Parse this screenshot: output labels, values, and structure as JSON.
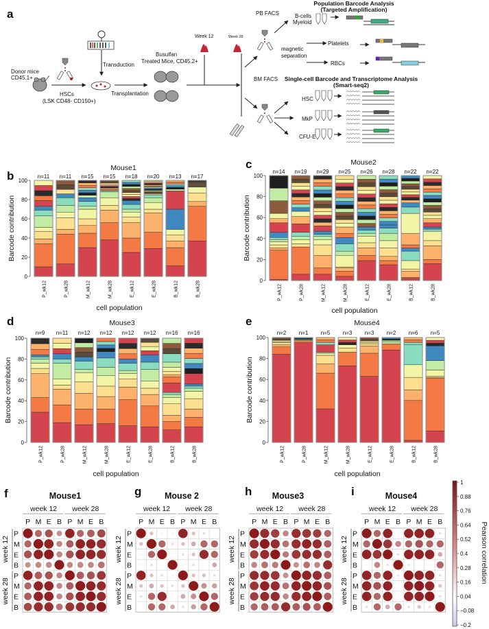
{
  "panel_labels": [
    "a",
    "b",
    "c",
    "d",
    "e",
    "f",
    "g",
    "h",
    "i"
  ],
  "schematic": {
    "donor_line1": "Donor mice",
    "donor_line2": "CD45.1+",
    "hsc_line1": "HSCs",
    "hsc_line2": "(LSK CD48- CD150+)",
    "transduction": "Transduction",
    "transplantation": "Transplantation",
    "recipient_line1": "Busulfan",
    "recipient_line2": "Treated Mice, CD45.2+",
    "week12": "Week 12",
    "week28": "Week 28",
    "pb_facs": "PB FACS",
    "pop_title1": "Population Barcode Analysis",
    "pop_title2": "(Targeted Amplification)",
    "bcells": "B-cells",
    "myeloid": "Myeloid",
    "magnetic1": "magnetic",
    "magnetic2": "separation",
    "platelets": "Platelets",
    "rbcs": "RBCs",
    "bm_facs": "BM FACS",
    "sc_title1": "Single-cell Barcode and Transcriptome Analysis",
    "sc_title2": "(Smart-seq2)",
    "hsc": "HSC",
    "mkp": "MkP",
    "cfue": "CFU-E"
  },
  "palette": [
    "#d5434f",
    "#f47a45",
    "#fdb26b",
    "#fde08f",
    "#f2f5a6",
    "#c2eca3",
    "#8adcc0",
    "#3f88c0"
  ],
  "top_palette": [
    "#2b2b2b",
    "#8c5a3c",
    "#f47a45",
    "#fde08f",
    "#3f88c0",
    "#d5434f",
    "#c2eca3",
    "#fdb26b",
    "#5a4a3a",
    "#8adcc0",
    "#f2f5a6",
    "#1e1e1e"
  ],
  "chart_data": [
    {
      "type": "bar",
      "stacked": true,
      "title": "Mouse1",
      "xlabel": "cell population",
      "ylabel": "Barcode contribution",
      "ylim": [
        0,
        100
      ],
      "yticks": [
        "0",
        "20",
        "40",
        "60",
        "80",
        "100"
      ],
      "categories": [
        "P_wk12",
        "P_wk28",
        "M_wk12",
        "M_wk28",
        "E_wk12",
        "E_wk28",
        "B_wk12",
        "B_wk28"
      ],
      "n_labels": [
        "n=11",
        "n=11",
        "n=15",
        "n=15",
        "n=18",
        "n=20",
        "n=13",
        "n=17"
      ],
      "n": [
        11,
        11,
        15,
        15,
        18,
        20,
        13,
        17
      ],
      "segments": [
        [
          10,
          24,
          5,
          8,
          4,
          12,
          6,
          4,
          6,
          5
        ],
        [
          13,
          31,
          5,
          12,
          6,
          7,
          8,
          4
        ],
        [
          30,
          15,
          8,
          7,
          10,
          3,
          5,
          4
        ],
        [
          38,
          18,
          13,
          5,
          8,
          6
        ],
        [
          25,
          15,
          16,
          6,
          5,
          3,
          5,
          4
        ],
        [
          29,
          17,
          20,
          4,
          7,
          5,
          3
        ],
        [
          11,
          19,
          7,
          6,
          6,
          0,
          0,
          21,
          19
        ],
        [
          37,
          36,
          5,
          9,
          6
        ]
      ]
    },
    {
      "type": "bar",
      "stacked": true,
      "title": "Mouse2",
      "xlabel": "cell population",
      "ylabel": "Barcode contribution",
      "ylim": [
        0,
        100
      ],
      "yticks": [
        "0",
        "20",
        "40",
        "60",
        "80",
        "100"
      ],
      "categories": [
        "P_wk12",
        "P_wk28",
        "M_wk12",
        "M_wk28",
        "E_wk12",
        "E_wk28",
        "B_wk12",
        "B_wk28"
      ],
      "n_labels": [
        "n=14",
        "n=19",
        "n=29",
        "n=25",
        "n=26",
        "n=28",
        "n=22",
        "n=22"
      ],
      "n": [
        14,
        19,
        29,
        25,
        26,
        28,
        22,
        22
      ],
      "segments": [
        [
          1,
          28,
          2,
          3,
          3,
          2,
          2,
          5,
          9,
          0,
          4,
          0,
          5
        ],
        [
          6,
          26,
          0,
          3,
          4,
          3,
          4,
          0,
          8,
          0,
          7,
          0,
          5
        ],
        [
          6,
          6,
          12,
          10,
          5,
          3,
          2,
          3,
          5
        ],
        [
          4,
          5,
          3,
          1,
          11,
          4,
          7,
          6,
          0,
          4,
          6
        ],
        [
          19,
          5,
          7,
          5,
          6,
          3,
          3,
          3
        ],
        [
          15,
          4,
          4,
          8,
          7,
          7,
          5,
          3
        ],
        [
          2,
          1,
          6,
          2,
          8,
          0,
          9,
          3,
          0,
          3,
          11,
          0,
          19,
          0,
          6,
          4
        ],
        [
          16,
          4,
          13,
          5,
          9,
          0,
          2,
          2,
          4,
          0,
          4
        ]
      ]
    },
    {
      "type": "bar",
      "stacked": true,
      "title": "Mouse3",
      "xlabel": "cell population",
      "ylabel": "Barcode contribution",
      "ylim": [
        0,
        100
      ],
      "yticks": [
        "0",
        "20",
        "40",
        "60",
        "80",
        "100"
      ],
      "categories": [
        "P_wk12",
        "P_wk28",
        "M_wk12",
        "M_wk28",
        "E_wk12",
        "E_wk28",
        "B_wk12",
        "B_wk28"
      ],
      "n_labels": [
        "n=9",
        "n=11",
        "n=12",
        "n=12",
        "n=12",
        "n=12",
        "n=16",
        "n=16"
      ],
      "n": [
        9,
        11,
        12,
        12,
        12,
        12,
        16,
        16
      ],
      "segments": [
        [
          29,
          14,
          23,
          5,
          5,
          4,
          2,
          2
        ],
        [
          19,
          17,
          15,
          4,
          6,
          15,
          4,
          5
        ],
        [
          17,
          15,
          15,
          11,
          9,
          3,
          8,
          4
        ],
        [
          18,
          14,
          12,
          10,
          10,
          8,
          9,
          6
        ],
        [
          16,
          25,
          12,
          8,
          5,
          3,
          7,
          4
        ],
        [
          15,
          20,
          11,
          6,
          7,
          11,
          7,
          7
        ],
        [
          12,
          8,
          6,
          11,
          6,
          3,
          2,
          0,
          9,
          6,
          2,
          3,
          4,
          5,
          8
        ],
        [
          15,
          9,
          8,
          10,
          7,
          3,
          2,
          2,
          10
        ]
      ]
    },
    {
      "type": "bar",
      "stacked": true,
      "title": "Mouse4",
      "xlabel": "cell population",
      "ylabel": "Barcode contribution",
      "ylim": [
        0,
        100
      ],
      "yticks": [
        "0",
        "20",
        "40",
        "60",
        "80",
        "100"
      ],
      "categories": [
        "P_wk12",
        "P_wk28",
        "M_wk12",
        "M_wk28",
        "E_wk12",
        "E_wk28",
        "B_wk12",
        "B_wk28"
      ],
      "n_labels": [
        "n=2",
        "n=1",
        "n=5",
        "n=3",
        "n=3",
        "n=2",
        "n=6",
        "n=5"
      ],
      "n": [
        2,
        1,
        5,
        3,
        3,
        2,
        6,
        5
      ],
      "segments": [
        [
          84,
          7,
          2,
          2,
          1
        ],
        [
          95,
          2
        ],
        [
          32,
          34,
          9,
          8,
          2,
          1,
          0,
          0,
          7
        ],
        [
          73,
          13,
          0,
          4,
          3
        ],
        [
          63,
          22,
          7,
          2,
          1
        ],
        [
          88,
          6,
          0,
          0,
          0,
          2
        ],
        [
          2,
          38,
          10,
          12,
          12,
          0,
          19
        ],
        [
          11,
          50,
          1,
          1,
          6,
          9,
          0,
          14
        ]
      ]
    },
    {
      "type": "heatmap",
      "style": "correlation-dots",
      "title": "Mouse1",
      "group_labels": [
        "week 12",
        "week 28"
      ],
      "cell_labels": [
        "P",
        "M",
        "E",
        "B",
        "P",
        "M",
        "E",
        "B"
      ],
      "values": [
        [
          1,
          0.6,
          0.7,
          0.4,
          0.95,
          0.6,
          0.65,
          0.75
        ],
        [
          0.6,
          1,
          0.95,
          0.45,
          0.65,
          0.95,
          0.95,
          0.9
        ],
        [
          0.7,
          0.95,
          1,
          0.45,
          0.7,
          0.95,
          0.95,
          0.9
        ],
        [
          0.4,
          0.45,
          0.45,
          1,
          0.45,
          0.45,
          0.45,
          0.55
        ],
        [
          0.95,
          0.65,
          0.7,
          0.45,
          1,
          0.65,
          0.7,
          0.85
        ],
        [
          0.6,
          0.95,
          0.95,
          0.45,
          0.65,
          1,
          0.95,
          0.9
        ],
        [
          0.65,
          0.95,
          0.95,
          0.45,
          0.7,
          0.95,
          1,
          0.9
        ],
        [
          0.75,
          0.9,
          0.9,
          0.55,
          0.85,
          0.9,
          0.9,
          1
        ]
      ]
    },
    {
      "type": "heatmap",
      "style": "correlation-dots",
      "title": "Mouse 2",
      "group_labels": [
        "week 12",
        "week 28"
      ],
      "cell_labels": [
        "P",
        "M",
        "E",
        "B",
        "P",
        "M",
        "E",
        "B"
      ],
      "values": [
        [
          1,
          0.2,
          0.05,
          0.05,
          0.95,
          0.2,
          0.1,
          0
        ],
        [
          0.2,
          1,
          0.6,
          0.1,
          0.2,
          0.3,
          0.6,
          0.6
        ],
        [
          0.05,
          0.6,
          1,
          0,
          0.1,
          0.2,
          0.9,
          0.6
        ],
        [
          0.05,
          0.1,
          0,
          1,
          0.05,
          0.1,
          0,
          0.3
        ],
        [
          0.95,
          0.2,
          0.1,
          0.05,
          1,
          0.2,
          0.2,
          0.1
        ],
        [
          0.2,
          0.3,
          0.2,
          0.1,
          0.2,
          1,
          0.4,
          0.35
        ],
        [
          0.1,
          0.6,
          0.9,
          0,
          0.3,
          0.4,
          1,
          0.6
        ],
        [
          0,
          0.6,
          0.6,
          0.3,
          0.1,
          0.35,
          0.6,
          1
        ]
      ]
    },
    {
      "type": "heatmap",
      "style": "correlation-dots",
      "title": "Mouse3",
      "group_labels": [
        "week 12",
        "week 28"
      ],
      "cell_labels": [
        "P",
        "M",
        "E",
        "B",
        "P",
        "M",
        "E",
        "B"
      ],
      "values": [
        [
          1,
          0.9,
          0.8,
          0.45,
          0.9,
          0.85,
          0.8,
          0.6
        ],
        [
          0.9,
          1,
          0.9,
          0.55,
          0.9,
          0.95,
          0.9,
          0.65
        ],
        [
          0.8,
          0.9,
          1,
          0.5,
          0.85,
          0.9,
          0.9,
          0.65
        ],
        [
          0.45,
          0.55,
          0.5,
          1,
          0.4,
          0.55,
          0.45,
          0.9
        ],
        [
          0.9,
          0.9,
          0.85,
          0.4,
          1,
          0.95,
          0.9,
          0.65
        ],
        [
          0.85,
          0.95,
          0.9,
          0.55,
          0.95,
          1,
          0.95,
          0.7
        ],
        [
          0.8,
          0.9,
          0.9,
          0.45,
          0.9,
          0.95,
          1,
          0.65
        ],
        [
          0.6,
          0.65,
          0.65,
          0.9,
          0.65,
          0.7,
          0.65,
          1
        ]
      ]
    },
    {
      "type": "heatmap",
      "style": "correlation-dots",
      "title": "Mouse4",
      "group_labels": [
        "week 12",
        "week 28"
      ],
      "cell_labels": [
        "P",
        "M",
        "E",
        "B",
        "P",
        "M",
        "E",
        "B"
      ],
      "values": [
        [
          1,
          0.6,
          0.95,
          -0.05,
          0.95,
          0.95,
          0.95,
          0.1
        ],
        [
          0.6,
          1,
          0.85,
          0.45,
          0.6,
          0.7,
          0.6,
          0.6
        ],
        [
          0.95,
          0.85,
          1,
          0.1,
          0.95,
          0.95,
          0.95,
          0.3
        ],
        [
          -0.05,
          0.45,
          0.1,
          1,
          -0.1,
          0,
          -0.05,
          0.6
        ],
        [
          0.95,
          0.6,
          0.95,
          -0.1,
          1,
          0.95,
          0.95,
          0.1
        ],
        [
          0.95,
          0.7,
          0.95,
          0,
          0.95,
          1,
          0.95,
          0.2
        ],
        [
          0.95,
          0.6,
          0.95,
          -0.05,
          0.95,
          0.95,
          1,
          0.1
        ],
        [
          0.1,
          0.6,
          0.3,
          0.6,
          0.1,
          0.2,
          0.1,
          1
        ]
      ]
    }
  ],
  "colorbar": {
    "label": "Pearson correlation",
    "ticks": [
      "1",
      "0.88",
      "0.76",
      "0.64",
      "0.52",
      "0.4",
      "0.28",
      "0.16",
      "0.04",
      "−0.08",
      "−0.2"
    ],
    "range": [
      -0.2,
      1
    ],
    "high_color": "#7a1414",
    "low_color": "#c8c8f0"
  }
}
